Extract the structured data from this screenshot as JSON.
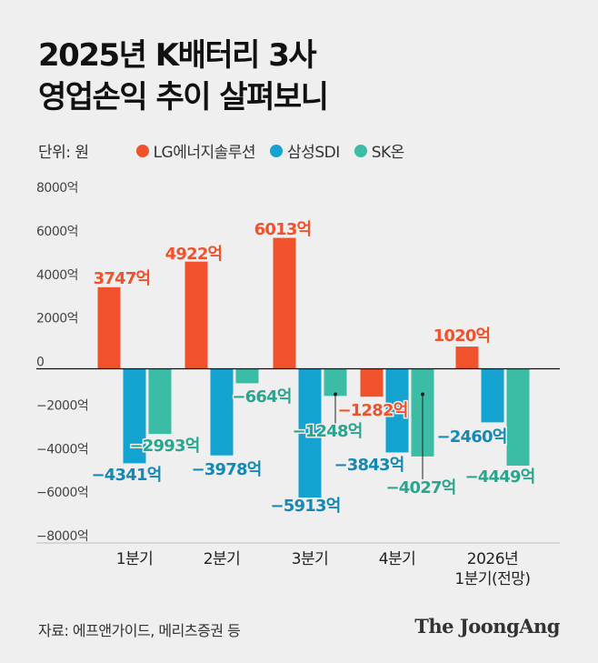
{
  "header": {
    "title_line1": "2025년 K배터리 3사",
    "title_line2": "영업손익 추이 살펴보니"
  },
  "legend": {
    "unit": "단위: 원",
    "items": [
      {
        "label": "LG에너지솔루션",
        "color": "#f0522b"
      },
      {
        "label": "삼성SDI",
        "color": "#14a3d0"
      },
      {
        "label": "SK온",
        "color": "#3bbca5"
      }
    ]
  },
  "chart_data": {
    "type": "bar",
    "categories": [
      [
        "1분기"
      ],
      [
        "2분기"
      ],
      [
        "3분기"
      ],
      [
        "4분기"
      ],
      [
        "2026년",
        "1분기(전망)"
      ]
    ],
    "series": [
      {
        "name": "LG에너지솔루션",
        "color": "#f0522b",
        "label_color": "#f0522b",
        "values": [
          3747,
          4922,
          6013,
          -1282,
          1020
        ],
        "labels": [
          "3747억",
          "4922억",
          "6013억",
          "−1282억",
          "1020억"
        ]
      },
      {
        "name": "삼성SDI",
        "color": "#14a3d0",
        "label_color": "#1588b5",
        "values": [
          -4341,
          -3978,
          -5913,
          -3843,
          -2460
        ],
        "labels": [
          "−4341억",
          "−3978억",
          "−5913억",
          "−3843억",
          "−2460억"
        ]
      },
      {
        "name": "SK온",
        "color": "#3bbca5",
        "label_color": "#2aa58e",
        "values": [
          -2993,
          -664,
          -1248,
          -4027,
          -4449
        ],
        "labels": [
          "−2993억",
          "−664억",
          "−1248억",
          "−4027억",
          "−4449억"
        ]
      }
    ],
    "yticks": [
      8000,
      6000,
      4000,
      2000,
      0,
      -2000,
      -4000,
      -6000,
      -8000
    ],
    "ytick_labels": [
      "8000억",
      "6000억",
      "4000억",
      "2000억",
      "0",
      "−2000억",
      "−4000억",
      "−6000억",
      "−8000억"
    ],
    "ylim": [
      -8000,
      8000
    ],
    "grid": false,
    "legend_position": "top-left"
  },
  "footer": {
    "source": "자료: 에프앤가이드, 메리츠증권 등",
    "brand": "The JoongAng"
  }
}
